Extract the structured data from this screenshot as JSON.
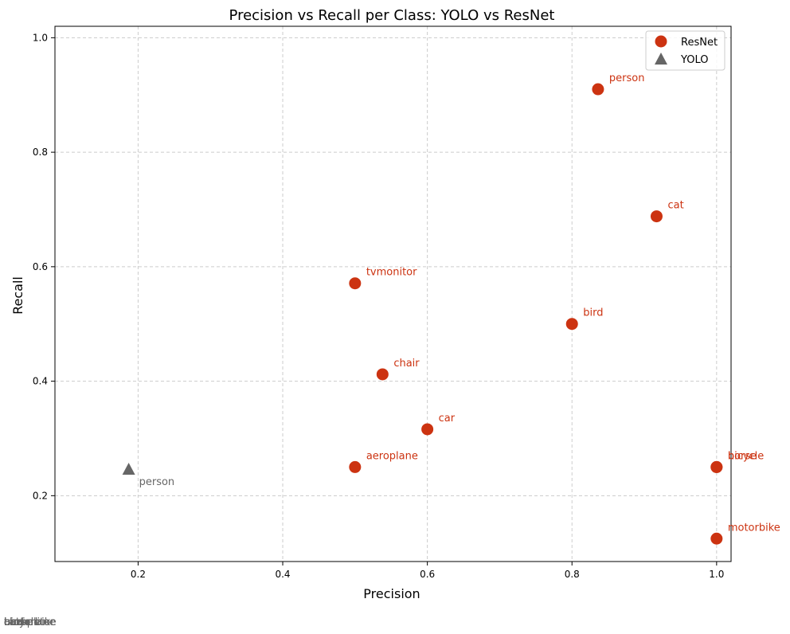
{
  "chart_data": {
    "type": "scatter",
    "title": "Precision vs Recall per Class: YOLO vs ResNet",
    "xlabel": "Precision",
    "ylabel": "Recall",
    "xlim": [
      0.085,
      1.02
    ],
    "ylim": [
      0.085,
      1.02
    ],
    "xticks": [
      "0.2",
      "0.4",
      "0.6",
      "0.8",
      "1.0"
    ],
    "yticks": [
      "0.2",
      "0.4",
      "0.6",
      "0.8",
      "1.0"
    ],
    "grid": true,
    "legend_position": "top-right",
    "series": [
      {
        "name": "ResNet",
        "marker": "circle",
        "color": "#CC3311",
        "points": [
          {
            "label": "person",
            "x": 0.836,
            "y": 0.91
          },
          {
            "label": "cat",
            "x": 0.917,
            "y": 0.688
          },
          {
            "label": "tvmonitor",
            "x": 0.5,
            "y": 0.571
          },
          {
            "label": "bird",
            "x": 0.8,
            "y": 0.5
          },
          {
            "label": "chair",
            "x": 0.538,
            "y": 0.412
          },
          {
            "label": "car",
            "x": 0.6,
            "y": 0.316
          },
          {
            "label": "aeroplane",
            "x": 0.5,
            "y": 0.25
          },
          {
            "label": "bicycle",
            "x": 1.0,
            "y": 0.25
          },
          {
            "label": "horse",
            "x": 1.0,
            "y": 0.25
          },
          {
            "label": "motorbike",
            "x": 1.0,
            "y": 0.125
          }
        ]
      },
      {
        "name": "YOLO",
        "marker": "triangle",
        "color": "#666666",
        "points": [
          {
            "label": "person",
            "x": 0.187,
            "y": 0.245
          },
          {
            "label": "cat",
            "x": 0.0,
            "y": 0.0
          },
          {
            "label": "car",
            "x": 0.0,
            "y": 0.0
          },
          {
            "label": "aeroplane",
            "x": 0.0,
            "y": 0.0
          },
          {
            "label": "bicycle",
            "x": 0.0,
            "y": 0.0
          },
          {
            "label": "bird",
            "x": 0.0,
            "y": 0.0
          },
          {
            "label": "chair",
            "x": 0.0,
            "y": 0.0
          },
          {
            "label": "horse",
            "x": 0.0,
            "y": 0.0
          },
          {
            "label": "motorbike",
            "x": 0.0,
            "y": 0.0
          },
          {
            "label": "tvmonitor",
            "x": 0.0,
            "y": 0.0
          }
        ]
      }
    ]
  }
}
